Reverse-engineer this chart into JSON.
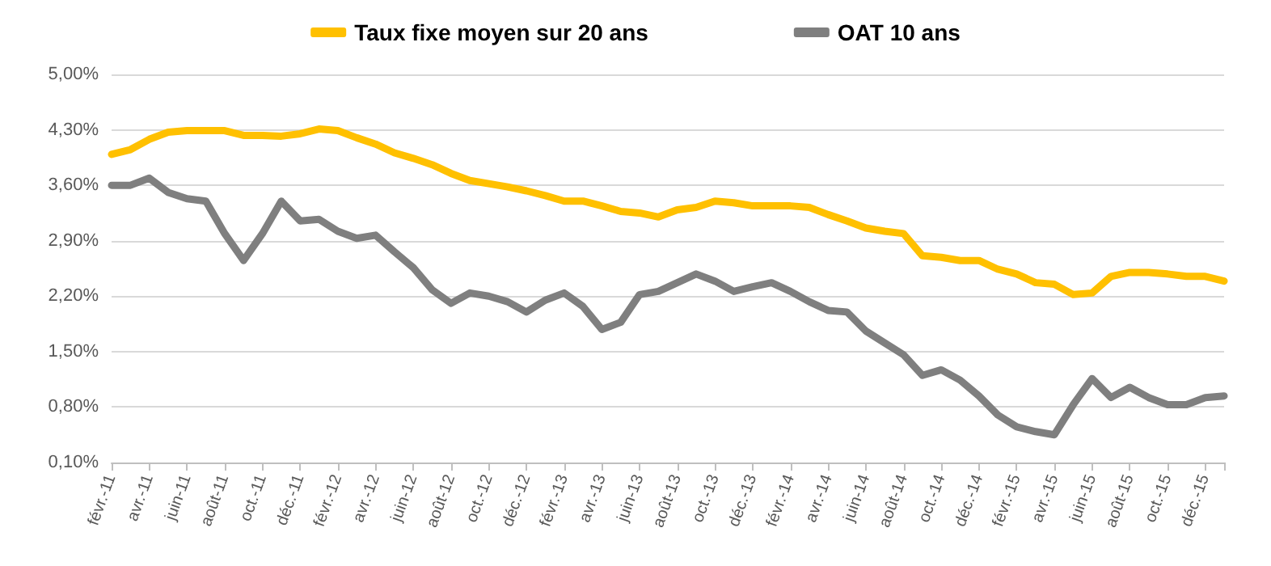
{
  "chart_data": {
    "type": "line",
    "categories": [
      "févr.-11",
      null,
      "avr.-11",
      null,
      "juin-11",
      null,
      "août-11",
      null,
      "oct.-11",
      null,
      "déc.-11",
      null,
      "févr.-12",
      null,
      "avr.-12",
      null,
      "juin-12",
      null,
      "août-12",
      null,
      "oct.-12",
      null,
      "déc.-12",
      null,
      "févr.-13",
      null,
      "avr.-13",
      null,
      "juin-13",
      null,
      "août-13",
      null,
      "oct.-13",
      null,
      "déc.-13",
      null,
      "févr.-14",
      null,
      "avr.-14",
      null,
      "juin-14",
      null,
      "août-14",
      null,
      "oct.-14",
      null,
      "déc.-14",
      null,
      "févr.-15",
      null,
      "avr.-15",
      null,
      "juin-15",
      null,
      "août-15",
      null,
      "oct.-15",
      null,
      "déc.-15",
      null
    ],
    "series": [
      {
        "name": "Taux fixe moyen sur 20 ans",
        "color": "#ffc000",
        "values": [
          3.99,
          4.05,
          4.18,
          4.27,
          4.29,
          4.29,
          4.29,
          4.23,
          4.23,
          4.22,
          4.25,
          4.31,
          4.29,
          4.2,
          4.12,
          4.01,
          3.94,
          3.86,
          3.75,
          3.66,
          3.62,
          3.58,
          3.53,
          3.47,
          3.4,
          3.4,
          3.34,
          3.27,
          3.25,
          3.2,
          3.29,
          3.32,
          3.4,
          3.38,
          3.34,
          3.34,
          3.34,
          3.32,
          3.23,
          3.15,
          3.06,
          3.02,
          2.99,
          2.71,
          2.69,
          2.65,
          2.65,
          2.54,
          2.48,
          2.37,
          2.35,
          2.22,
          2.24,
          2.45,
          2.5,
          2.5,
          2.48,
          2.45,
          2.45,
          2.39
        ]
      },
      {
        "name": "OAT 10 ans",
        "color": "#7f7f7f",
        "values": [
          3.6,
          3.6,
          3.69,
          3.51,
          3.43,
          3.4,
          2.99,
          2.65,
          2.99,
          3.4,
          3.15,
          3.17,
          3.02,
          2.93,
          2.97,
          2.76,
          2.56,
          2.28,
          2.11,
          2.24,
          2.2,
          2.13,
          2.0,
          2.15,
          2.24,
          2.07,
          1.78,
          1.87,
          2.22,
          2.26,
          2.37,
          2.48,
          2.39,
          2.26,
          2.32,
          2.37,
          2.26,
          2.13,
          2.02,
          2.0,
          1.76,
          1.61,
          1.46,
          1.2,
          1.27,
          1.14,
          0.94,
          0.7,
          0.55,
          0.49,
          0.45,
          0.83,
          1.16,
          0.92,
          1.05,
          0.92,
          0.83,
          0.83,
          0.92,
          0.94
        ]
      }
    ],
    "ylim": [
      0.1,
      5.0
    ],
    "yticks": [
      {
        "value": 0.1,
        "label": "0,10%"
      },
      {
        "value": 0.8,
        "label": "0,80%"
      },
      {
        "value": 1.5,
        "label": "1,50%"
      },
      {
        "value": 2.2,
        "label": "2,20%"
      },
      {
        "value": 2.9,
        "label": "2,90%"
      },
      {
        "value": 3.6,
        "label": "3,60%"
      },
      {
        "value": 4.3,
        "label": "4,30%"
      },
      {
        "value": 5.0,
        "label": "5,00%"
      }
    ],
    "grid": "y",
    "legend": "top",
    "marker": "none",
    "line_style": "solid"
  }
}
